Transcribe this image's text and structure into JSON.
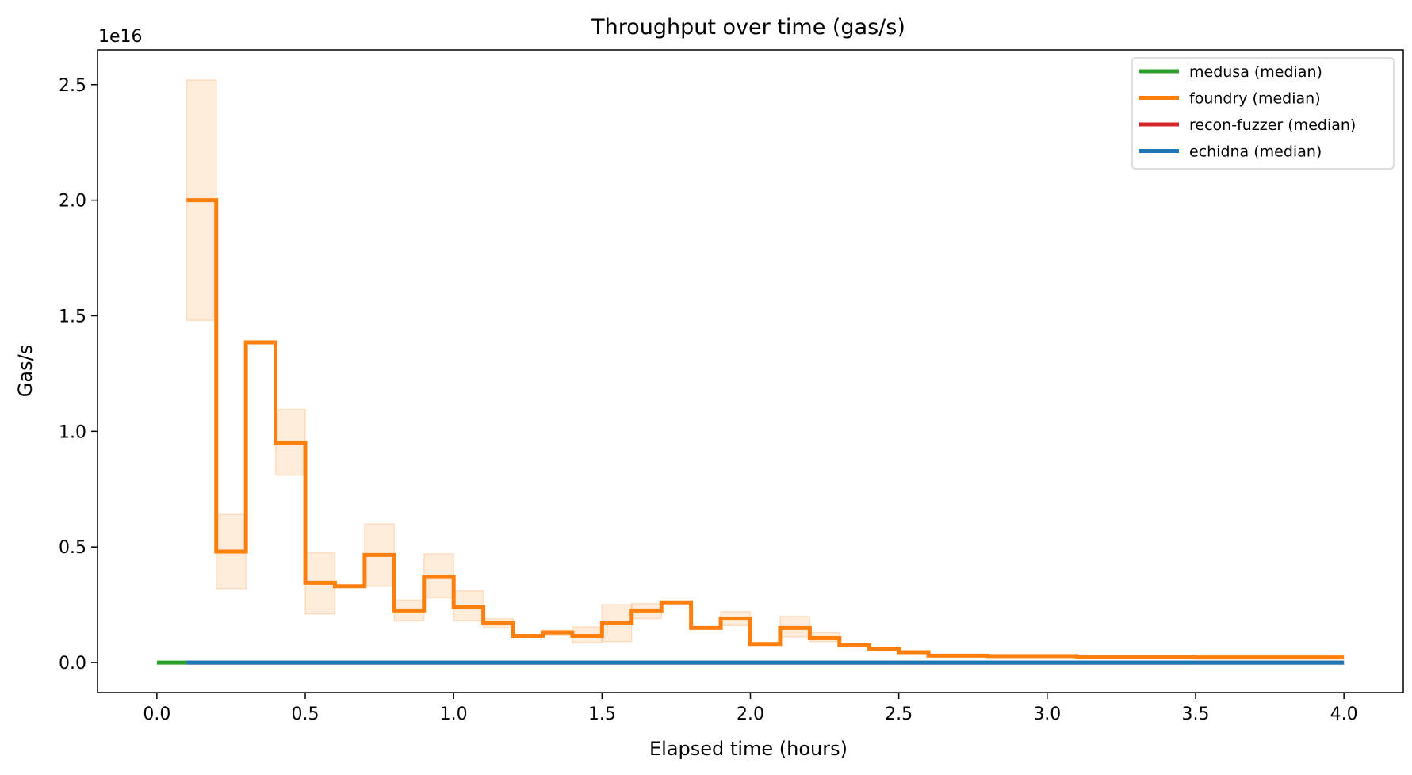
{
  "chart_data": {
    "type": "line",
    "title": "Throughput over time (gas/s)",
    "xlabel": "Elapsed time (hours)",
    "ylabel": "Gas/s",
    "y_offset_label": "1e16",
    "xlim": [
      -0.2,
      4.2
    ],
    "ylim": [
      -0.13,
      2.65
    ],
    "y_scale_note": "values in units of 1e16",
    "x_ticks": [
      0.0,
      0.5,
      1.0,
      1.5,
      2.0,
      2.5,
      3.0,
      3.5,
      4.0
    ],
    "x_tick_labels": [
      "0.0",
      "0.5",
      "1.0",
      "1.5",
      "2.0",
      "2.5",
      "3.0",
      "3.5",
      "4.0"
    ],
    "y_ticks": [
      0.0,
      0.5,
      1.0,
      1.5,
      2.0,
      2.5
    ],
    "y_tick_labels": [
      "0.0",
      "0.5",
      "1.0",
      "1.5",
      "2.0",
      "2.5"
    ],
    "grid": false,
    "legend_position": "top-right",
    "series": [
      {
        "name": "medusa (median)",
        "color": "#2ca02c",
        "step_edges": [
          0.0,
          0.1
        ],
        "values": [
          0.0
        ]
      },
      {
        "name": "foundry (median)",
        "color": "#ff7f0e",
        "step_edges": [
          0.1,
          0.2,
          0.3,
          0.4,
          0.5,
          0.6,
          0.7,
          0.8,
          0.9,
          1.0,
          1.1,
          1.2,
          1.3,
          1.4,
          1.5,
          1.6,
          1.7,
          1.8,
          1.9,
          2.0,
          2.1,
          2.2,
          2.3,
          2.4,
          2.5,
          2.6,
          2.8,
          3.1,
          3.5,
          4.0
        ],
        "values": [
          2.0,
          0.48,
          1.385,
          0.95,
          0.345,
          0.33,
          0.465,
          0.225,
          0.37,
          0.24,
          0.17,
          0.115,
          0.13,
          0.115,
          0.17,
          0.225,
          0.26,
          0.15,
          0.19,
          0.08,
          0.15,
          0.105,
          0.075,
          0.06,
          0.045,
          0.03,
          0.028,
          0.025,
          0.022
        ],
        "band_lower": [
          1.48,
          0.32,
          1.385,
          0.81,
          0.21,
          0.33,
          0.33,
          0.18,
          0.28,
          0.18,
          0.15,
          0.115,
          0.12,
          0.085,
          0.09,
          0.19,
          0.26,
          0.15,
          0.16,
          0.08,
          0.11,
          0.09,
          0.075,
          0.06,
          0.045,
          0.03,
          0.028,
          0.025,
          0.022
        ],
        "band_upper": [
          2.52,
          0.64,
          1.385,
          1.095,
          0.475,
          0.33,
          0.6,
          0.27,
          0.47,
          0.31,
          0.19,
          0.115,
          0.14,
          0.155,
          0.25,
          0.255,
          0.26,
          0.15,
          0.22,
          0.08,
          0.2,
          0.13,
          0.075,
          0.06,
          0.045,
          0.03,
          0.028,
          0.025,
          0.022
        ]
      },
      {
        "name": "recon-fuzzer (median)",
        "color": "#d62728",
        "step_edges": [
          0.1,
          4.0
        ],
        "values": [
          0.0
        ]
      },
      {
        "name": "echidna (median)",
        "color": "#1f77b4",
        "step_edges": [
          0.1,
          4.0
        ],
        "values": [
          0.0
        ]
      }
    ]
  }
}
